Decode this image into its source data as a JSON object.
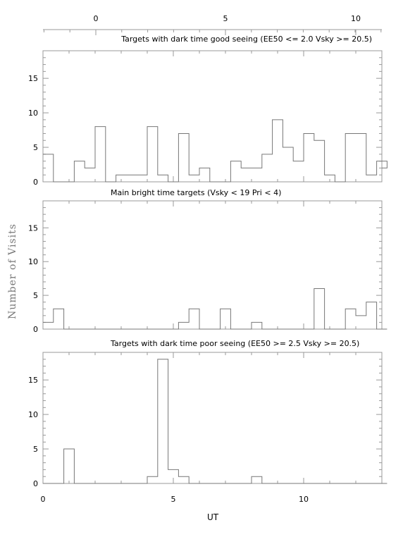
{
  "figure": {
    "ylabel": "Number of Visits",
    "xlabel": "UT",
    "top_axis_ticks": [
      "0",
      "5",
      "10"
    ]
  },
  "chart_data": [
    {
      "type": "bar",
      "title": "Targets with dark time good seeing (EE50 <= 2.0 Vsky >= 20.5)",
      "xlabel": "UT",
      "ylabel": "Number of Visits",
      "xlim": [
        0,
        13
      ],
      "ylim": [
        0,
        19
      ],
      "x_ticks": [
        0,
        5,
        10
      ],
      "y_ticks": [
        0,
        5,
        10,
        15
      ],
      "bin_width": 0.4,
      "bin_start": 0,
      "values": [
        4,
        0,
        0,
        3,
        2,
        8,
        0,
        1,
        1,
        1,
        8,
        1,
        0,
        7,
        1,
        2,
        0,
        0,
        3,
        2,
        2,
        4,
        9,
        5,
        3,
        7,
        6,
        1,
        0,
        7,
        7,
        1,
        3,
        2
      ]
    },
    {
      "type": "bar",
      "title": "Main bright time targets (Vsky < 19 Pri < 4)",
      "xlabel": "UT",
      "ylabel": "Number of Visits",
      "xlim": [
        0,
        13
      ],
      "ylim": [
        0,
        19
      ],
      "x_ticks": [
        0,
        5,
        10
      ],
      "y_ticks": [
        0,
        5,
        10,
        15
      ],
      "bin_width": 0.4,
      "bin_start": 0,
      "values": [
        1,
        3,
        0,
        0,
        0,
        0,
        0,
        0,
        0,
        0,
        0,
        0,
        0,
        1,
        3,
        0,
        0,
        3,
        0,
        0,
        1,
        0,
        0,
        0,
        0,
        0,
        6,
        0,
        0,
        3,
        2,
        4,
        0,
        0
      ]
    },
    {
      "type": "bar",
      "title": "Targets with dark time poor seeing (EE50 >= 2.5 Vsky >= 20.5)",
      "xlabel": "UT",
      "ylabel": "Number of Visits",
      "xlim": [
        0,
        13
      ],
      "ylim": [
        0,
        19
      ],
      "x_ticks": [
        0,
        5,
        10
      ],
      "y_ticks": [
        0,
        5,
        10,
        15
      ],
      "bin_width": 0.4,
      "bin_start": 0,
      "values": [
        0,
        0,
        5,
        0,
        0,
        0,
        0,
        0,
        0,
        0,
        1,
        18,
        2,
        1,
        0,
        0,
        0,
        0,
        0,
        0,
        1,
        0,
        0,
        0,
        0,
        0,
        0,
        0,
        0,
        0,
        0,
        0,
        0,
        0
      ]
    }
  ]
}
